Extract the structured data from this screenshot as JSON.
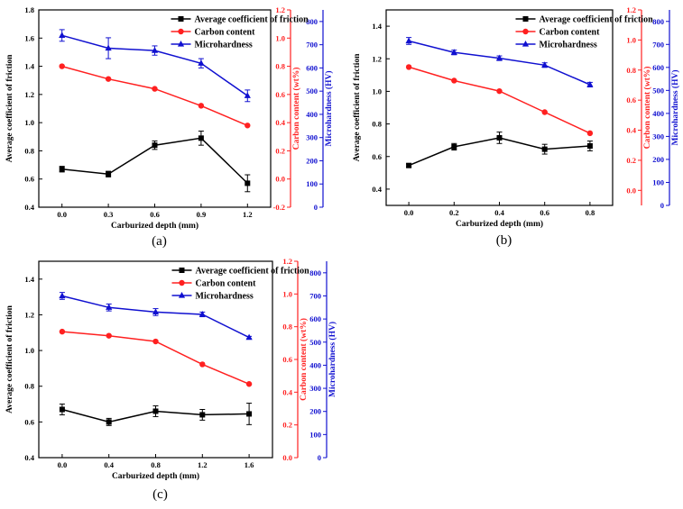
{
  "figure": {
    "colors": {
      "friction": "#000000",
      "carbon": "#ff2020",
      "hardness": "#1010d0"
    }
  },
  "chart_data": [
    {
      "type": "line",
      "panel_label": "(a)",
      "xlabel": "Carburized depth (mm)",
      "ylabel_left": "Average coefficient of friction",
      "ylabel_carbon": "Carbon content (wt%)",
      "ylabel_hardness": "Microhardness (HV)",
      "x": [
        0.0,
        0.3,
        0.6,
        0.9,
        1.2
      ],
      "xticks": [
        "0.0",
        "0.3",
        "0.6",
        "0.9",
        "1.2"
      ],
      "xlim": [
        -0.15,
        1.35
      ],
      "ylim_left": [
        0.4,
        1.8
      ],
      "yticks_left": [
        "0.4",
        "0.6",
        "0.8",
        "1.0",
        "1.2",
        "1.4",
        "1.6",
        "1.8"
      ],
      "ylim_carbon": [
        -0.2,
        1.2
      ],
      "yticks_carbon": [
        "-0.2",
        "0.0",
        "0.2",
        "0.4",
        "0.6",
        "0.8",
        "1.0",
        "1.2"
      ],
      "ylim_hardness": [
        0,
        850
      ],
      "yticks_hardness": [
        "0",
        "100",
        "200",
        "300",
        "400",
        "500",
        "600",
        "700",
        "800"
      ],
      "series": [
        {
          "name": "Average coefficient of friction",
          "axis": "left",
          "values": [
            0.67,
            0.635,
            0.84,
            0.89,
            0.57
          ],
          "errors": [
            0.02,
            0.02,
            0.03,
            0.05,
            0.06
          ]
        },
        {
          "name": "Carbon content",
          "axis": "carbon",
          "values": [
            0.8,
            0.71,
            0.64,
            0.52,
            0.38
          ],
          "errors": [
            0,
            0,
            0,
            0,
            0
          ]
        },
        {
          "name": "Microhardness",
          "axis": "hardness",
          "values": [
            740,
            685,
            675,
            620,
            480
          ],
          "errors": [
            25,
            45,
            20,
            20,
            25
          ]
        }
      ]
    },
    {
      "type": "line",
      "panel_label": "(b)",
      "xlabel": "Carburized depth (mm)",
      "ylabel_left": "Average coefficient of friction",
      "ylabel_carbon": "Carbon content (wt%)",
      "ylabel_hardness": "Microhardness (HV)",
      "x": [
        0.0,
        0.2,
        0.4,
        0.6,
        0.8
      ],
      "xticks": [
        "0.0",
        "0.2",
        "0.4",
        "0.6",
        "0.8"
      ],
      "xlim": [
        -0.1,
        0.9
      ],
      "ylim_left": [
        0.3,
        1.5
      ],
      "yticks_left": [
        "0.4",
        "0.6",
        "0.8",
        "1.0",
        "1.2",
        "1.4"
      ],
      "ylim_carbon": [
        -0.1,
        1.2
      ],
      "yticks_carbon": [
        "0.0",
        "0.2",
        "0.4",
        "0.6",
        "0.8",
        "1.0",
        "1.2"
      ],
      "ylim_hardness": [
        0,
        850
      ],
      "yticks_hardness": [
        "0",
        "100",
        "200",
        "300",
        "400",
        "500",
        "600",
        "700",
        "800"
      ],
      "series": [
        {
          "name": "Average coefficient of friction",
          "axis": "left",
          "values": [
            0.545,
            0.66,
            0.715,
            0.645,
            0.665
          ],
          "errors": [
            0.01,
            0.02,
            0.035,
            0.03,
            0.03
          ]
        },
        {
          "name": "Carbon content",
          "axis": "carbon",
          "values": [
            0.82,
            0.73,
            0.66,
            0.52,
            0.38
          ],
          "errors": [
            0,
            0,
            0,
            0,
            0
          ]
        },
        {
          "name": "Microhardness",
          "axis": "hardness",
          "values": [
            715,
            665,
            640,
            610,
            525
          ],
          "errors": [
            15,
            10,
            10,
            10,
            10
          ]
        }
      ]
    },
    {
      "type": "line",
      "panel_label": "(c)",
      "xlabel": "Carburized depth (mm)",
      "ylabel_left": "Average coefficient of friction",
      "ylabel_carbon": "Carbon content (wt%)",
      "ylabel_hardness": "Microhardness (HV)",
      "x": [
        0.0,
        0.4,
        0.8,
        1.2,
        1.6
      ],
      "xticks": [
        "0.0",
        "0.4",
        "0.8",
        "1.2",
        "1.6"
      ],
      "xlim": [
        -0.2,
        1.8
      ],
      "ylim_left": [
        0.4,
        1.5
      ],
      "yticks_left": [
        "0.4",
        "0.6",
        "0.8",
        "1.0",
        "1.2",
        "1.4"
      ],
      "ylim_carbon": [
        0.0,
        1.2
      ],
      "yticks_carbon": [
        "0.0",
        "0.2",
        "0.4",
        "0.6",
        "0.8",
        "1.0",
        "1.2"
      ],
      "ylim_hardness": [
        0,
        850
      ],
      "yticks_hardness": [
        "0",
        "100",
        "200",
        "300",
        "400",
        "500",
        "600",
        "700",
        "800"
      ],
      "series": [
        {
          "name": "Average coefficient of friction",
          "axis": "left",
          "values": [
            0.67,
            0.6,
            0.66,
            0.64,
            0.645
          ],
          "errors": [
            0.03,
            0.02,
            0.03,
            0.03,
            0.06
          ]
        },
        {
          "name": "Carbon content",
          "axis": "carbon",
          "values": [
            0.77,
            0.745,
            0.71,
            0.57,
            0.45
          ],
          "errors": [
            0,
            0,
            0,
            0,
            0
          ]
        },
        {
          "name": "Microhardness",
          "axis": "hardness",
          "values": [
            700,
            650,
            630,
            620,
            520
          ],
          "errors": [
            15,
            15,
            15,
            10,
            5
          ]
        }
      ]
    }
  ]
}
